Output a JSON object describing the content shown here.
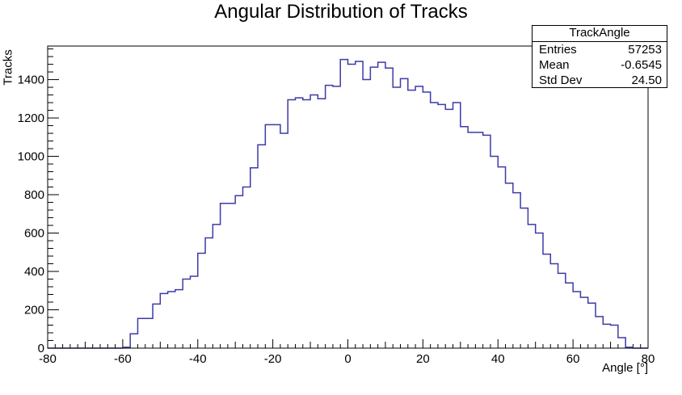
{
  "chart_data": {
    "type": "histogram",
    "title": "Angular Distribution of Tracks",
    "xlabel": "Angle [°]",
    "ylabel": "Tracks",
    "xlim": [
      -80,
      80
    ],
    "ylim": [
      0,
      1575
    ],
    "bin_width": 2,
    "bin_start": -80,
    "x_ticks": [
      -80,
      -60,
      -40,
      -20,
      0,
      20,
      40,
      60,
      80
    ],
    "x_tick_labels": [
      "-80",
      "-60",
      "-40",
      "-20",
      "0",
      "20",
      "40",
      "60",
      "80"
    ],
    "y_ticks": [
      0,
      200,
      400,
      600,
      800,
      1000,
      1200,
      1400
    ],
    "y_tick_labels": [
      "0",
      "200",
      "400",
      "600",
      "800",
      "1000",
      "1200",
      "1400"
    ],
    "line_color": "#3b3ba8",
    "grid": false,
    "legend": "none",
    "values": [
      0,
      0,
      0,
      0,
      0,
      0,
      0,
      0,
      0,
      0,
      5,
      75,
      155,
      155,
      230,
      285,
      295,
      305,
      360,
      375,
      495,
      575,
      645,
      755,
      755,
      795,
      840,
      940,
      1060,
      1165,
      1165,
      1120,
      1295,
      1305,
      1295,
      1320,
      1300,
      1370,
      1365,
      1505,
      1480,
      1495,
      1400,
      1465,
      1490,
      1460,
      1360,
      1405,
      1345,
      1365,
      1335,
      1280,
      1270,
      1245,
      1280,
      1155,
      1125,
      1125,
      1110,
      1000,
      945,
      860,
      810,
      730,
      645,
      600,
      490,
      440,
      390,
      340,
      295,
      265,
      235,
      165,
      125,
      120,
      55,
      5,
      0,
      0
    ]
  },
  "stats": {
    "name": "TrackAngle",
    "rows": [
      {
        "label": "Entries",
        "value": "57253"
      },
      {
        "label": "Mean",
        "value": "-0.6545"
      },
      {
        "label": "Std Dev",
        "value": "24.50"
      }
    ]
  }
}
